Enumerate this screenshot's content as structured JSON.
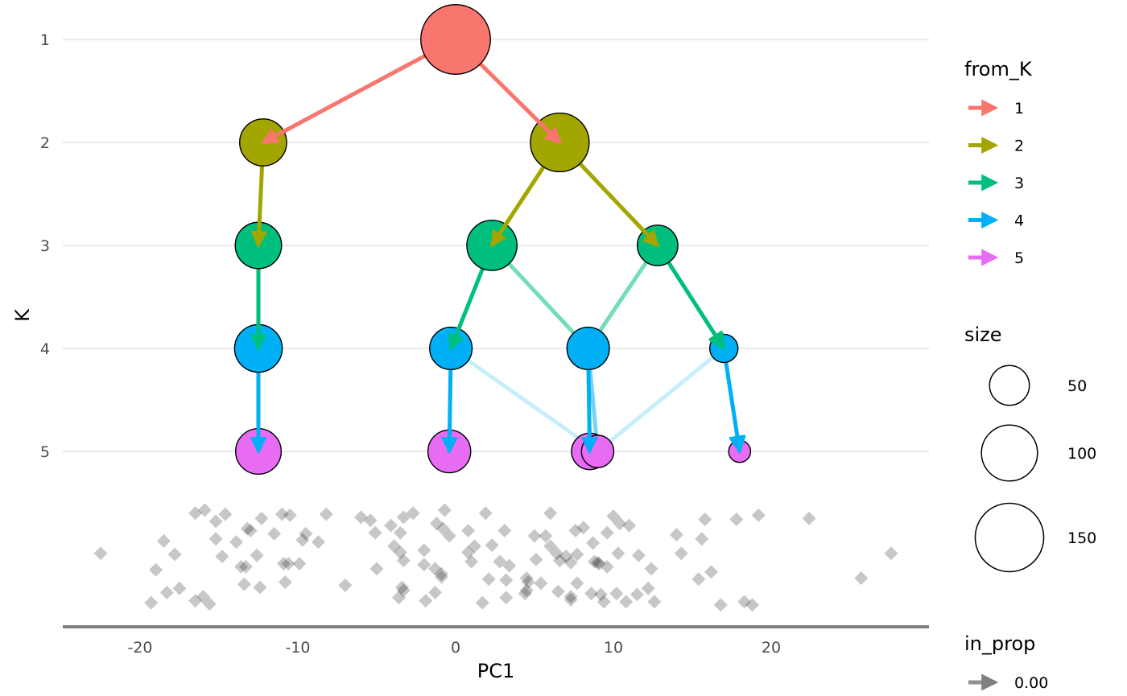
{
  "chart_data": {
    "type": "scatter",
    "title": "",
    "xlabel": "PC1",
    "ylabel": "K",
    "xlim": [
      -25,
      30
    ],
    "ylim": [
      0.7,
      6.8
    ],
    "x_ticks": [
      -20,
      -10,
      0,
      10,
      20
    ],
    "y_ticks": [
      1,
      2,
      3,
      4,
      5
    ],
    "grid": "horizontal",
    "legend_position": "right",
    "nodes": [
      {
        "id": "1_1",
        "K": 1,
        "x": 0,
        "size": 155
      },
      {
        "id": "2_1",
        "K": 2,
        "x": -12.2,
        "size": 70
      },
      {
        "id": "2_2",
        "K": 2,
        "x": 6.6,
        "size": 110
      },
      {
        "id": "3_1",
        "K": 3,
        "x": -12.5,
        "size": 68
      },
      {
        "id": "3_2",
        "K": 3,
        "x": 2.3,
        "size": 80
      },
      {
        "id": "3_3",
        "K": 3,
        "x": 12.8,
        "size": 52
      },
      {
        "id": "4_1",
        "K": 4,
        "x": -12.5,
        "size": 72
      },
      {
        "id": "4_2",
        "K": 4,
        "x": -0.3,
        "size": 57
      },
      {
        "id": "4_3",
        "K": 4,
        "x": 8.4,
        "size": 57
      },
      {
        "id": "4_4",
        "K": 4,
        "x": 17.0,
        "size": 25
      },
      {
        "id": "5_1",
        "K": 5,
        "x": -12.5,
        "size": 66
      },
      {
        "id": "5_2",
        "K": 5,
        "x": -0.4,
        "size": 58
      },
      {
        "id": "5_3",
        "K": 5,
        "x": 9.0,
        "size": 33
      },
      {
        "id": "5_4",
        "K": 5,
        "x": 8.5,
        "size": 42
      },
      {
        "id": "5_5",
        "K": 5,
        "x": 18.0,
        "size": 15
      }
    ],
    "edges": [
      {
        "from": "1_1",
        "to": "2_1",
        "from_K": 1,
        "in_prop": 1.0
      },
      {
        "from": "1_1",
        "to": "2_2",
        "from_K": 1,
        "in_prop": 1.0
      },
      {
        "from": "2_1",
        "to": "3_1",
        "from_K": 2,
        "in_prop": 1.0
      },
      {
        "from": "2_2",
        "to": "3_2",
        "from_K": 2,
        "in_prop": 1.0
      },
      {
        "from": "2_2",
        "to": "3_3",
        "from_K": 2,
        "in_prop": 1.0
      },
      {
        "from": "3_1",
        "to": "4_1",
        "from_K": 3,
        "in_prop": 1.0
      },
      {
        "from": "3_2",
        "to": "4_2",
        "from_K": 3,
        "in_prop": 1.0
      },
      {
        "from": "3_2",
        "to": "4_3",
        "from_K": 3,
        "in_prop": 0.55
      },
      {
        "from": "3_3",
        "to": "4_3",
        "from_K": 3,
        "in_prop": 0.45
      },
      {
        "from": "3_3",
        "to": "4_4",
        "from_K": 3,
        "in_prop": 1.0
      },
      {
        "from": "4_1",
        "to": "5_1",
        "from_K": 4,
        "in_prop": 1.0
      },
      {
        "from": "4_2",
        "to": "5_2",
        "from_K": 4,
        "in_prop": 1.0
      },
      {
        "from": "4_2",
        "to": "5_3",
        "from_K": 4,
        "in_prop": 0.2
      },
      {
        "from": "4_3",
        "to": "5_3",
        "from_K": 4,
        "in_prop": 0.6
      },
      {
        "from": "4_3",
        "to": "5_4",
        "from_K": 4,
        "in_prop": 1.0
      },
      {
        "from": "4_4",
        "to": "5_3",
        "from_K": 4,
        "in_prop": 0.2
      },
      {
        "from": "4_4",
        "to": "5_5",
        "from_K": 4,
        "in_prop": 1.0
      }
    ],
    "samples": [
      [
        -22.5,
        5.99
      ],
      [
        -19.3,
        6.47
      ],
      [
        -16.5,
        5.6
      ],
      [
        -15.9,
        5.57
      ],
      [
        -16.5,
        6.45
      ],
      [
        -18.5,
        5.87
      ],
      [
        -17.8,
        6.0
      ],
      [
        -19.0,
        6.15
      ],
      [
        -18.3,
        6.37
      ],
      [
        -17.5,
        6.33
      ],
      [
        -15.2,
        5.68
      ],
      [
        -14.6,
        5.61
      ],
      [
        -15.6,
        6.48
      ],
      [
        -14.8,
        6.02
      ],
      [
        -15.2,
        5.85
      ],
      [
        -13.9,
        5.88
      ],
      [
        -13.2,
        5.75
      ],
      [
        -13.0,
        5.77
      ],
      [
        -12.3,
        5.65
      ],
      [
        -13.3,
        6.12
      ],
      [
        -13.4,
        6.29
      ],
      [
        -12.6,
        6.01
      ],
      [
        -12.4,
        6.32
      ],
      [
        -11.0,
        5.61
      ],
      [
        -10.5,
        5.62
      ],
      [
        -11.5,
        5.8
      ],
      [
        -10.9,
        6.09
      ],
      [
        -10.6,
        6.09
      ],
      [
        -9.9,
        6.09
      ],
      [
        -10.8,
        6.27
      ],
      [
        -9.7,
        5.86
      ],
      [
        -9.5,
        5.8
      ],
      [
        -8.7,
        5.88
      ],
      [
        -8.2,
        5.61
      ],
      [
        -7.0,
        6.3
      ],
      [
        -6.0,
        5.64
      ],
      [
        -5.4,
        5.67
      ],
      [
        -5.1,
        5.79
      ],
      [
        -5.0,
        6.14
      ],
      [
        -4.1,
        5.72
      ],
      [
        -3.5,
        5.79
      ],
      [
        -3.9,
        5.92
      ],
      [
        -3.3,
        5.64
      ],
      [
        -3.5,
        5.98
      ],
      [
        -3.3,
        6.06
      ],
      [
        -3.4,
        6.32
      ],
      [
        -3.6,
        6.42
      ],
      [
        -3.3,
        6.35
      ],
      [
        -2.7,
        5.6
      ],
      [
        -2.0,
        6.1
      ],
      [
        -2.0,
        5.96
      ],
      [
        -1.9,
        6.45
      ],
      [
        -1.2,
        5.7
      ],
      [
        -0.7,
        5.57
      ],
      [
        -0.9,
        6.22
      ],
      [
        -1.3,
        6.37
      ],
      [
        -0.9,
        6.19
      ],
      [
        -0.4,
        5.82
      ],
      [
        -1.3,
        6.14
      ],
      [
        -0.8,
        5.75
      ],
      [
        0.8,
        5.77
      ],
      [
        0.8,
        5.98
      ],
      [
        1.0,
        6.07
      ],
      [
        1.7,
        6.47
      ],
      [
        1.9,
        5.6
      ],
      [
        2.3,
        5.91
      ],
      [
        2.1,
        6.24
      ],
      [
        2.8,
        6.07
      ],
      [
        3.1,
        5.77
      ],
      [
        3.2,
        6.42
      ],
      [
        3.2,
        6.25
      ],
      [
        4.5,
        6.35
      ],
      [
        4.5,
        6.23
      ],
      [
        4.6,
        6.27
      ],
      [
        5.1,
        6.05
      ],
      [
        5.0,
        5.82
      ],
      [
        5.4,
        6.28
      ],
      [
        4.4,
        6.38
      ],
      [
        6.0,
        5.6
      ],
      [
        6.0,
        5.92
      ],
      [
        5.7,
        5.82
      ],
      [
        6.6,
        6.06
      ],
      [
        6.4,
        5.99
      ],
      [
        6.5,
        6.36
      ],
      [
        7.0,
        6.02
      ],
      [
        7.3,
        6.08
      ],
      [
        7.3,
        6.41
      ],
      [
        7.3,
        6.44
      ],
      [
        7.6,
        5.77
      ],
      [
        7.7,
        6.0
      ],
      [
        8.1,
        5.74
      ],
      [
        8.6,
        6.38
      ],
      [
        8.7,
        5.89
      ],
      [
        8.8,
        6.07
      ],
      [
        9.0,
        6.08
      ],
      [
        9.2,
        6.39
      ],
      [
        9.4,
        6.46
      ],
      [
        9.6,
        5.79
      ],
      [
        9.6,
        6.12
      ],
      [
        10.0,
        5.63
      ],
      [
        10.2,
        6.38
      ],
      [
        10.3,
        5.99
      ],
      [
        10.8,
        6.46
      ],
      [
        11.0,
        5.72
      ],
      [
        11.5,
        6.39
      ],
      [
        11.6,
        6.01
      ],
      [
        12.2,
        6.33
      ],
      [
        12.4,
        6.14
      ],
      [
        12.6,
        6.46
      ],
      [
        14.0,
        5.81
      ],
      [
        14.3,
        5.99
      ],
      [
        15.4,
        6.24
      ],
      [
        15.6,
        5.85
      ],
      [
        15.8,
        5.66
      ],
      [
        16.2,
        6.17
      ],
      [
        16.8,
        6.49
      ],
      [
        17.8,
        5.66
      ],
      [
        18.3,
        6.46
      ],
      [
        18.8,
        6.49
      ],
      [
        19.2,
        5.62
      ],
      [
        22.4,
        5.65
      ],
      [
        25.7,
        6.23
      ],
      [
        27.6,
        5.99
      ],
      [
        -16.0,
        6.41
      ],
      [
        -13.6,
        6.12
      ],
      [
        1.2,
        5.92
      ],
      [
        3.4,
        6.11
      ],
      [
        9.1,
        6.09
      ],
      [
        10.4,
        5.7
      ],
      [
        7.7,
        6.28
      ]
    ],
    "legends": {
      "from_K": {
        "title": "from_K",
        "labels": [
          "1",
          "2",
          "3",
          "4",
          "5"
        ],
        "colors": [
          "#F8766D",
          "#A3A500",
          "#00BF7D",
          "#00B0F6",
          "#E76BF3"
        ]
      },
      "size": {
        "title": "size",
        "labels": [
          "50",
          "100",
          "150"
        ],
        "values": [
          50,
          100,
          150
        ]
      },
      "in_prop": {
        "title": "in_prop",
        "labels": [
          "0.00"
        ],
        "values": [
          0.0
        ]
      }
    }
  }
}
